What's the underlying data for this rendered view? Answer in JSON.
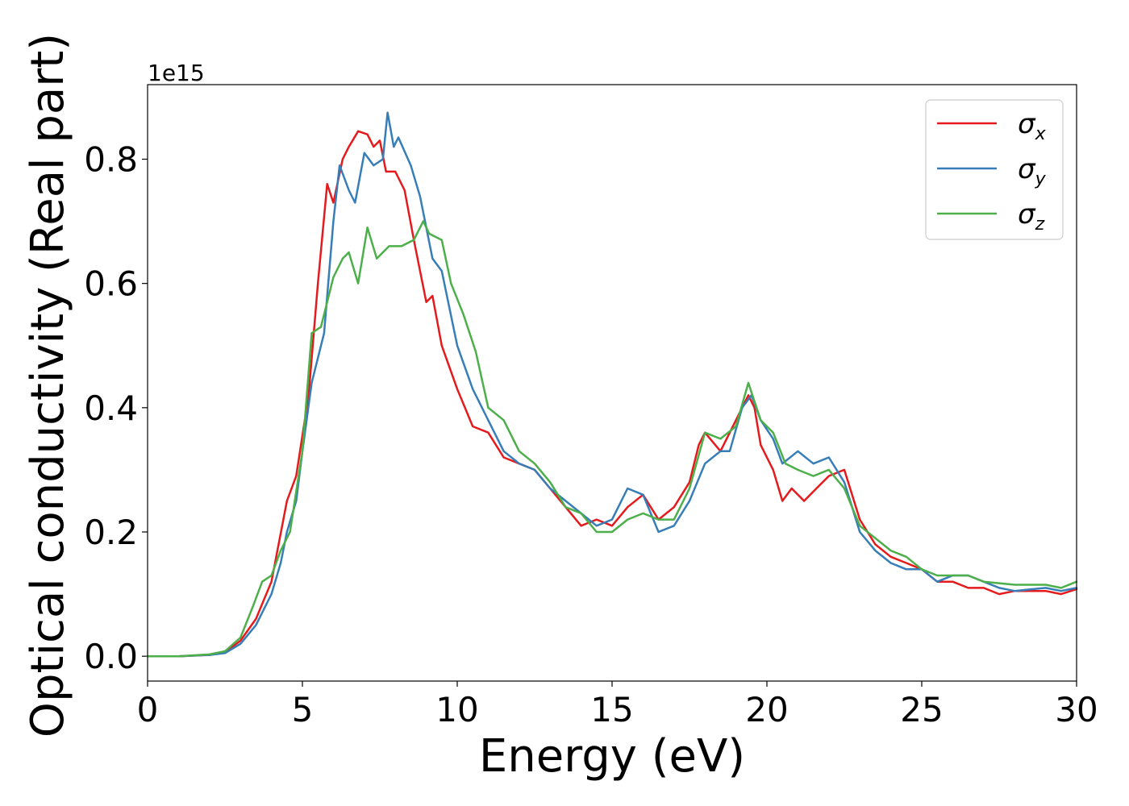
{
  "chart_data": {
    "type": "line",
    "title": "",
    "xlabel": "Energy (eV)",
    "ylabel": "Optical conductivity (Real part)",
    "offset_text": "1e15",
    "xlim": [
      0,
      30
    ],
    "ylim": [
      -0.04,
      0.92
    ],
    "xticks": [
      0,
      5,
      10,
      15,
      20,
      25,
      30
    ],
    "xtick_labels": [
      "0",
      "5",
      "10",
      "15",
      "20",
      "25",
      "30"
    ],
    "yticks": [
      0.0,
      0.2,
      0.4,
      0.6,
      0.8
    ],
    "ytick_labels": [
      "0.0",
      "0.2",
      "0.4",
      "0.6",
      "0.8"
    ],
    "grid": false,
    "legend_position": "top-right",
    "series": [
      {
        "name": "σx",
        "symbol": "σ",
        "subscript": "x",
        "color": "#e41a1c",
        "points": [
          [
            0,
            0
          ],
          [
            1,
            0
          ],
          [
            2,
            0.002
          ],
          [
            2.5,
            0.006
          ],
          [
            3,
            0.025
          ],
          [
            3.5,
            0.06
          ],
          [
            4,
            0.12
          ],
          [
            4.5,
            0.25
          ],
          [
            4.8,
            0.29
          ],
          [
            5.2,
            0.42
          ],
          [
            5.5,
            0.6
          ],
          [
            5.8,
            0.76
          ],
          [
            6,
            0.73
          ],
          [
            6.3,
            0.8
          ],
          [
            6.5,
            0.82
          ],
          [
            6.8,
            0.845
          ],
          [
            7.1,
            0.84
          ],
          [
            7.3,
            0.82
          ],
          [
            7.5,
            0.83
          ],
          [
            7.7,
            0.78
          ],
          [
            8,
            0.78
          ],
          [
            8.3,
            0.75
          ],
          [
            8.6,
            0.67
          ],
          [
            9,
            0.57
          ],
          [
            9.2,
            0.58
          ],
          [
            9.5,
            0.5
          ],
          [
            10,
            0.43
          ],
          [
            10.5,
            0.37
          ],
          [
            11,
            0.36
          ],
          [
            11.5,
            0.32
          ],
          [
            12,
            0.31
          ],
          [
            12.5,
            0.3
          ],
          [
            13,
            0.27
          ],
          [
            13.5,
            0.24
          ],
          [
            14,
            0.21
          ],
          [
            14.5,
            0.22
          ],
          [
            15,
            0.21
          ],
          [
            15.5,
            0.24
          ],
          [
            16,
            0.26
          ],
          [
            16.5,
            0.22
          ],
          [
            17,
            0.24
          ],
          [
            17.5,
            0.28
          ],
          [
            17.8,
            0.34
          ],
          [
            18,
            0.36
          ],
          [
            18.5,
            0.33
          ],
          [
            19,
            0.38
          ],
          [
            19.4,
            0.42
          ],
          [
            19.6,
            0.4
          ],
          [
            19.8,
            0.34
          ],
          [
            20.2,
            0.3
          ],
          [
            20.5,
            0.25
          ],
          [
            20.8,
            0.27
          ],
          [
            21.2,
            0.25
          ],
          [
            21.6,
            0.27
          ],
          [
            22,
            0.29
          ],
          [
            22.5,
            0.3
          ],
          [
            23,
            0.22
          ],
          [
            23.5,
            0.18
          ],
          [
            24,
            0.16
          ],
          [
            24.5,
            0.15
          ],
          [
            25,
            0.14
          ],
          [
            25.5,
            0.12
          ],
          [
            26,
            0.12
          ],
          [
            26.5,
            0.11
          ],
          [
            27,
            0.11
          ],
          [
            27.5,
            0.1
          ],
          [
            28,
            0.105
          ],
          [
            29,
            0.105
          ],
          [
            29.5,
            0.1
          ],
          [
            30,
            0.108
          ]
        ]
      },
      {
        "name": "σy",
        "symbol": "σ",
        "subscript": "y",
        "color": "#377eb8",
        "points": [
          [
            0,
            0
          ],
          [
            1,
            0
          ],
          [
            2,
            0.002
          ],
          [
            2.5,
            0.005
          ],
          [
            3,
            0.02
          ],
          [
            3.5,
            0.05
          ],
          [
            4,
            0.1
          ],
          [
            4.3,
            0.15
          ],
          [
            4.5,
            0.2
          ],
          [
            4.8,
            0.25
          ],
          [
            5,
            0.33
          ],
          [
            5.3,
            0.44
          ],
          [
            5.7,
            0.52
          ],
          [
            6,
            0.7
          ],
          [
            6.2,
            0.79
          ],
          [
            6.5,
            0.75
          ],
          [
            6.7,
            0.73
          ],
          [
            7,
            0.81
          ],
          [
            7.3,
            0.79
          ],
          [
            7.6,
            0.8
          ],
          [
            7.75,
            0.875
          ],
          [
            7.95,
            0.82
          ],
          [
            8.1,
            0.835
          ],
          [
            8.5,
            0.79
          ],
          [
            8.8,
            0.74
          ],
          [
            9.2,
            0.64
          ],
          [
            9.5,
            0.62
          ],
          [
            10,
            0.5
          ],
          [
            10.5,
            0.43
          ],
          [
            11,
            0.38
          ],
          [
            11.5,
            0.33
          ],
          [
            12,
            0.31
          ],
          [
            12.5,
            0.3
          ],
          [
            13,
            0.27
          ],
          [
            13.5,
            0.25
          ],
          [
            14,
            0.23
          ],
          [
            14.5,
            0.21
          ],
          [
            15,
            0.22
          ],
          [
            15.5,
            0.27
          ],
          [
            16,
            0.26
          ],
          [
            16.5,
            0.2
          ],
          [
            17,
            0.21
          ],
          [
            17.5,
            0.25
          ],
          [
            18,
            0.31
          ],
          [
            18.5,
            0.33
          ],
          [
            18.8,
            0.33
          ],
          [
            19.2,
            0.4
          ],
          [
            19.5,
            0.42
          ],
          [
            19.8,
            0.38
          ],
          [
            20.2,
            0.35
          ],
          [
            20.5,
            0.31
          ],
          [
            21,
            0.33
          ],
          [
            21.5,
            0.31
          ],
          [
            22,
            0.32
          ],
          [
            22.5,
            0.28
          ],
          [
            23,
            0.2
          ],
          [
            23.5,
            0.17
          ],
          [
            24,
            0.15
          ],
          [
            24.5,
            0.14
          ],
          [
            25,
            0.14
          ],
          [
            25.5,
            0.12
          ],
          [
            26,
            0.13
          ],
          [
            26.5,
            0.13
          ],
          [
            27,
            0.12
          ],
          [
            27.5,
            0.11
          ],
          [
            28,
            0.105
          ],
          [
            29,
            0.11
          ],
          [
            29.5,
            0.105
          ],
          [
            30,
            0.11
          ]
        ]
      },
      {
        "name": "σz",
        "symbol": "σ",
        "subscript": "z",
        "color": "#4daf4a",
        "points": [
          [
            0,
            0
          ],
          [
            1,
            0
          ],
          [
            2,
            0.003
          ],
          [
            2.5,
            0.008
          ],
          [
            3,
            0.03
          ],
          [
            3.4,
            0.08
          ],
          [
            3.7,
            0.12
          ],
          [
            4,
            0.13
          ],
          [
            4.3,
            0.17
          ],
          [
            4.6,
            0.2
          ],
          [
            5,
            0.33
          ],
          [
            5.3,
            0.52
          ],
          [
            5.6,
            0.53
          ],
          [
            6,
            0.61
          ],
          [
            6.3,
            0.64
          ],
          [
            6.5,
            0.65
          ],
          [
            6.8,
            0.6
          ],
          [
            7.1,
            0.69
          ],
          [
            7.4,
            0.64
          ],
          [
            7.8,
            0.66
          ],
          [
            8.2,
            0.66
          ],
          [
            8.6,
            0.67
          ],
          [
            8.9,
            0.7
          ],
          [
            9.1,
            0.68
          ],
          [
            9.5,
            0.67
          ],
          [
            9.8,
            0.6
          ],
          [
            10.2,
            0.55
          ],
          [
            10.6,
            0.49
          ],
          [
            11,
            0.4
          ],
          [
            11.5,
            0.38
          ],
          [
            12,
            0.33
          ],
          [
            12.5,
            0.31
          ],
          [
            13,
            0.28
          ],
          [
            13.5,
            0.24
          ],
          [
            14,
            0.23
          ],
          [
            14.5,
            0.2
          ],
          [
            15,
            0.2
          ],
          [
            15.5,
            0.22
          ],
          [
            16,
            0.23
          ],
          [
            16.5,
            0.22
          ],
          [
            17,
            0.22
          ],
          [
            17.5,
            0.27
          ],
          [
            18,
            0.36
          ],
          [
            18.5,
            0.35
          ],
          [
            19,
            0.37
          ],
          [
            19.4,
            0.44
          ],
          [
            19.8,
            0.38
          ],
          [
            20.2,
            0.36
          ],
          [
            20.6,
            0.31
          ],
          [
            21,
            0.3
          ],
          [
            21.5,
            0.29
          ],
          [
            22,
            0.3
          ],
          [
            22.5,
            0.27
          ],
          [
            23,
            0.21
          ],
          [
            23.5,
            0.19
          ],
          [
            24,
            0.17
          ],
          [
            24.5,
            0.16
          ],
          [
            25,
            0.14
          ],
          [
            25.5,
            0.13
          ],
          [
            26,
            0.13
          ],
          [
            26.5,
            0.13
          ],
          [
            27,
            0.12
          ],
          [
            28,
            0.115
          ],
          [
            29,
            0.115
          ],
          [
            29.5,
            0.11
          ],
          [
            30,
            0.12
          ]
        ]
      }
    ]
  }
}
